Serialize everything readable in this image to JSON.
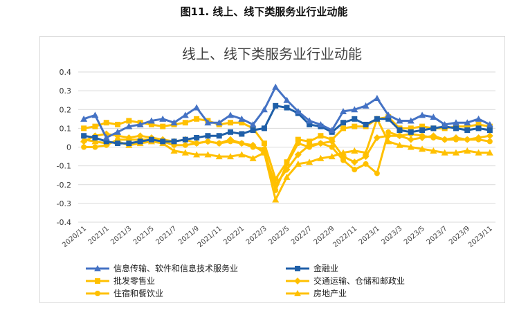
{
  "figure_title": "图11. 线上、线下类服务业行业动能",
  "chart_data": {
    "type": "line",
    "title": "线上、线下类服务业行业动能",
    "xlabel": "",
    "ylabel": "",
    "ylim": [
      -0.4,
      0.4
    ],
    "yticks": [
      "0.4",
      "0.3",
      "0.2",
      "0.1",
      "0",
      "-0.1",
      "-0.2",
      "-0.3",
      "-0.4"
    ],
    "x": [
      "2020/11",
      "2020/12",
      "2021/1",
      "2021/2",
      "2021/3",
      "2021/4",
      "2021/5",
      "2021/6",
      "2021/7",
      "2021/8",
      "2021/9",
      "2021/10",
      "2021/11",
      "2021/12",
      "2022/1",
      "2022/2",
      "2022/3",
      "2022/4",
      "2022/5",
      "2022/6",
      "2022/7",
      "2022/8",
      "2022/9",
      "2022/10",
      "2022/11",
      "2022/12",
      "2023/1",
      "2023/2",
      "2023/3",
      "2023/4",
      "2023/5",
      "2023/6",
      "2023/7",
      "2023/8",
      "2023/9",
      "2023/10",
      "2023/11"
    ],
    "xtick_labels": [
      "2020/11",
      "2021/1",
      "2021/3",
      "2021/5",
      "2021/7",
      "2021/9",
      "2021/11",
      "2022/1",
      "2022/3",
      "2022/5",
      "2022/7",
      "2022/9",
      "2022/11",
      "2023/1",
      "2023/3",
      "2023/5",
      "2023/7",
      "2023/9",
      "2023/11"
    ],
    "series": [
      {
        "name": "信息传输、软件和信息技术服务业",
        "color": "#4472C4",
        "marker": "triangle",
        "values": [
          0.15,
          0.17,
          0.05,
          0.08,
          0.11,
          0.12,
          0.14,
          0.15,
          0.13,
          0.17,
          0.21,
          0.13,
          0.13,
          0.17,
          0.15,
          0.12,
          0.2,
          0.32,
          0.25,
          0.19,
          0.14,
          0.12,
          0.09,
          0.19,
          0.2,
          0.22,
          0.26,
          0.17,
          0.14,
          0.14,
          0.17,
          0.16,
          0.12,
          0.13,
          0.13,
          0.15,
          0.12
        ]
      },
      {
        "name": "金融业",
        "color": "#1F5FA8",
        "marker": "square",
        "values": [
          0.06,
          0.05,
          0.03,
          0.02,
          0.02,
          0.03,
          0.04,
          0.03,
          0.03,
          0.04,
          0.05,
          0.06,
          0.06,
          0.08,
          0.07,
          0.09,
          0.1,
          0.22,
          0.21,
          0.18,
          0.12,
          0.11,
          0.08,
          0.13,
          0.15,
          0.12,
          0.15,
          0.15,
          0.09,
          0.08,
          0.09,
          0.1,
          0.11,
          0.1,
          0.09,
          0.1,
          0.09
        ]
      },
      {
        "name": "批发零售业",
        "color": "#FFC000",
        "marker": "square",
        "values": [
          0.1,
          0.11,
          0.13,
          0.12,
          0.14,
          0.13,
          0.12,
          0.11,
          0.12,
          0.13,
          0.15,
          0.14,
          0.12,
          0.13,
          0.13,
          0.1,
          0.02,
          -0.17,
          -0.08,
          0.04,
          0.03,
          0.06,
          0.04,
          0.1,
          0.11,
          0.11,
          0.15,
          0.16,
          0.1,
          0.1,
          0.11,
          0.1,
          0.1,
          0.11,
          0.11,
          0.12,
          0.11
        ]
      },
      {
        "name": "交通运输、仓储和邮政业",
        "color": "#FFC000",
        "marker": "diamond",
        "values": [
          0.03,
          0.06,
          0.07,
          0.06,
          0.05,
          0.06,
          0.05,
          0.04,
          0.03,
          0.04,
          0.02,
          0.03,
          0.02,
          0.04,
          0.02,
          0.01,
          -0.03,
          -0.2,
          -0.12,
          -0.04,
          0.01,
          0.02,
          0.03,
          -0.05,
          -0.08,
          -0.05,
          0.05,
          0.06,
          0.06,
          0.04,
          0.05,
          0.06,
          0.04,
          0.05,
          0.04,
          0.05,
          0.06
        ]
      },
      {
        "name": "住宿和餐饮业",
        "color": "#FFC000",
        "marker": "circle",
        "values": [
          0.0,
          0.0,
          0.01,
          0.04,
          0.04,
          0.04,
          0.04,
          0.03,
          0.01,
          0.01,
          0.02,
          0.03,
          0.02,
          0.03,
          0.02,
          0.0,
          -0.01,
          -0.23,
          -0.09,
          0.02,
          0.0,
          0.02,
          0.0,
          -0.07,
          -0.12,
          -0.09,
          -0.14,
          0.08,
          0.06,
          0.07,
          0.06,
          0.05,
          0.04,
          0.04,
          0.04,
          0.04,
          0.03
        ]
      },
      {
        "name": "房地产业",
        "color": "#FFC000",
        "marker": "triangle",
        "values": [
          0.04,
          0.03,
          0.02,
          0.03,
          0.01,
          0.02,
          0.03,
          0.02,
          -0.02,
          -0.03,
          -0.04,
          -0.04,
          -0.05,
          -0.05,
          -0.04,
          -0.06,
          -0.03,
          -0.28,
          -0.16,
          -0.09,
          -0.08,
          -0.06,
          -0.05,
          -0.03,
          -0.02,
          -0.03,
          0.15,
          0.03,
          0.01,
          0.0,
          -0.01,
          -0.02,
          -0.03,
          -0.03,
          -0.02,
          -0.03,
          -0.03
        ]
      }
    ]
  }
}
